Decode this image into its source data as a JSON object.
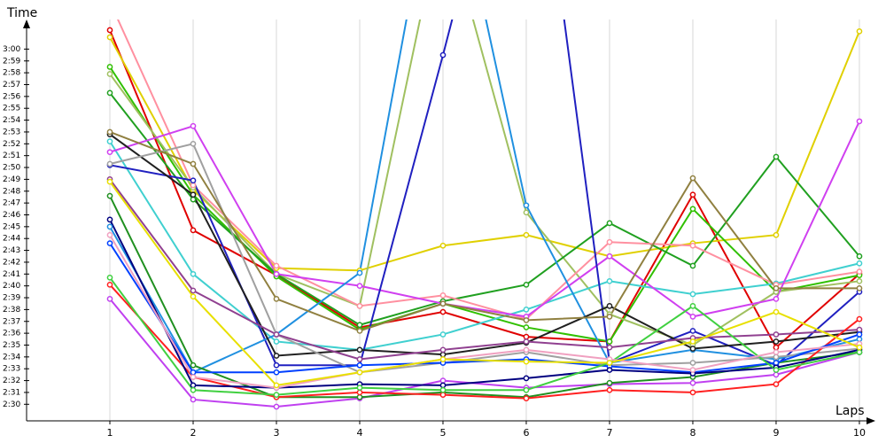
{
  "chart_data": {
    "type": "line",
    "y_label": "Time",
    "x_label": "Laps",
    "x": [
      1,
      2,
      3,
      4,
      5,
      6,
      7,
      8,
      9,
      10
    ],
    "xlim": [
      0,
      10.16
    ],
    "xticks": [
      1,
      2,
      3,
      4,
      5,
      6,
      7,
      8,
      9,
      10
    ],
    "ylim": [
      148.6,
      182.5
    ],
    "yticks": [
      {
        "value": 150,
        "label": "2:30"
      },
      {
        "value": 151,
        "label": "2:31"
      },
      {
        "value": 152,
        "label": "2:32"
      },
      {
        "value": 153,
        "label": "2:33"
      },
      {
        "value": 154,
        "label": "2:34"
      },
      {
        "value": 155,
        "label": "2:35"
      },
      {
        "value": 156,
        "label": "2:36"
      },
      {
        "value": 157,
        "label": "2:37"
      },
      {
        "value": 158,
        "label": "2:38"
      },
      {
        "value": 159,
        "label": "2:39"
      },
      {
        "value": 160,
        "label": "2:40"
      },
      {
        "value": 161,
        "label": "2:41"
      },
      {
        "value": 162,
        "label": "2:42"
      },
      {
        "value": 163,
        "label": "2:43"
      },
      {
        "value": 164,
        "label": "2:44"
      },
      {
        "value": 165,
        "label": "2:45"
      },
      {
        "value": 166,
        "label": "2:46"
      },
      {
        "value": 167,
        "label": "2:47"
      },
      {
        "value": 168,
        "label": "2:48"
      },
      {
        "value": 169,
        "label": "2:49"
      },
      {
        "value": 170,
        "label": "2:50"
      },
      {
        "value": 171,
        "label": "2:51"
      },
      {
        "value": 172,
        "label": "2:52"
      },
      {
        "value": 173,
        "label": "2:53"
      },
      {
        "value": 174,
        "label": "2:54"
      },
      {
        "value": 175,
        "label": "2:55"
      },
      {
        "value": 176,
        "label": "2:56"
      },
      {
        "value": 177,
        "label": "2:57"
      },
      {
        "value": 178,
        "label": "2:58"
      },
      {
        "value": 179,
        "label": "2:59"
      },
      {
        "value": 180,
        "label": "3:00"
      }
    ],
    "grid": true,
    "series": [
      {
        "color": "#e00000",
        "values": [
          181.6,
          164.7,
          160.9,
          156.5,
          157.8,
          155.7,
          155.3,
          167.7,
          154.8,
          161.0
        ]
      },
      {
        "color": "#e0d000",
        "values": [
          181.0,
          168.1,
          161.5,
          161.3,
          163.4,
          164.3,
          162.5,
          163.6,
          164.3,
          181.5
        ]
      },
      {
        "color": "#30c000",
        "values": [
          178.5,
          167.7,
          160.8,
          156.3,
          158.5,
          156.5,
          155.3,
          166.5,
          159.5,
          160.9
        ]
      },
      {
        "color": "#a0c060",
        "values": [
          177.9,
          168.3,
          161.0,
          158.3,
          191.7,
          166.2,
          157.6,
          155.0,
          159.5,
          160.4
        ]
      },
      {
        "color": "#20a020",
        "values": [
          176.3,
          167.3,
          161.0,
          156.7,
          158.7,
          160.1,
          165.3,
          161.7,
          170.9,
          162.5
        ]
      },
      {
        "color": "#40d0d0",
        "values": [
          172.2,
          161.0,
          155.3,
          154.6,
          155.9,
          158.0,
          160.4,
          159.3,
          160.2,
          161.9
        ]
      },
      {
        "color": "#ff90a0",
        "values": [
          184.0,
          168.5,
          161.7,
          158.3,
          159.2,
          157.2,
          163.7,
          163.4,
          160.1,
          161.2
        ]
      },
      {
        "color": "#c040f0",
        "values": [
          158.9,
          150.4,
          149.8,
          150.5,
          152.0,
          151.4,
          151.7,
          151.8,
          152.5,
          154.4
        ]
      },
      {
        "color": "#d040f0",
        "values": [
          171.3,
          173.5,
          161.0,
          160.0,
          158.5,
          157.4,
          162.5,
          157.4,
          158.9,
          173.9
        ]
      },
      {
        "color": "#2020c0",
        "values": [
          170.2,
          168.9,
          153.3,
          153.3,
          179.5,
          206.7,
          153.5,
          156.2,
          153.3,
          159.5
        ]
      },
      {
        "color": "#2090e0",
        "values": [
          165.0,
          152.7,
          155.9,
          161.1,
          199.2,
          166.8,
          153.5,
          154.6,
          153.8,
          155.5
        ]
      },
      {
        "color": "#202020",
        "values": [
          172.8,
          167.7,
          154.1,
          154.6,
          154.2,
          155.2,
          158.3,
          154.7,
          155.3,
          156.1
        ]
      },
      {
        "color": "#a0a0a0",
        "values": [
          170.3,
          172.0,
          155.9,
          152.7,
          153.5,
          154.4,
          153.3,
          153.5,
          154.0,
          154.7
        ]
      },
      {
        "color": "#908040",
        "values": [
          173.0,
          170.3,
          158.9,
          156.2,
          158.5,
          157.1,
          157.4,
          169.1,
          159.8,
          159.8
        ]
      },
      {
        "color": "#904090",
        "values": [
          169.0,
          159.6,
          155.9,
          153.8,
          154.6,
          155.3,
          154.8,
          155.6,
          155.9,
          156.3
        ]
      },
      {
        "color": "#209020",
        "values": [
          167.6,
          153.3,
          150.6,
          150.6,
          151.0,
          150.6,
          151.8,
          152.3,
          153.5,
          154.4
        ]
      },
      {
        "color": "#ff2020",
        "values": [
          160.1,
          152.3,
          150.6,
          151.0,
          150.8,
          150.5,
          151.2,
          151.0,
          151.7,
          157.2
        ]
      },
      {
        "color": "#0040ff",
        "values": [
          163.6,
          152.7,
          152.7,
          153.3,
          153.5,
          153.8,
          153.2,
          152.7,
          153.5,
          155.9
        ]
      },
      {
        "color": "#000080",
        "values": [
          165.6,
          151.6,
          151.4,
          151.7,
          151.6,
          152.2,
          152.9,
          152.6,
          153.1,
          154.6
        ]
      },
      {
        "color": "#40d040",
        "values": [
          160.7,
          151.2,
          150.8,
          151.4,
          151.2,
          151.2,
          153.5,
          158.3,
          152.9,
          154.4
        ]
      },
      {
        "color": "#f0a0c0",
        "values": [
          164.3,
          152.3,
          151.4,
          152.7,
          153.8,
          154.6,
          153.8,
          152.9,
          154.4,
          155.1
        ]
      },
      {
        "color": "#e8e000",
        "values": [
          168.8,
          159.1,
          151.6,
          152.7,
          153.8,
          153.6,
          153.5,
          155.3,
          157.8,
          154.8
        ]
      }
    ]
  }
}
